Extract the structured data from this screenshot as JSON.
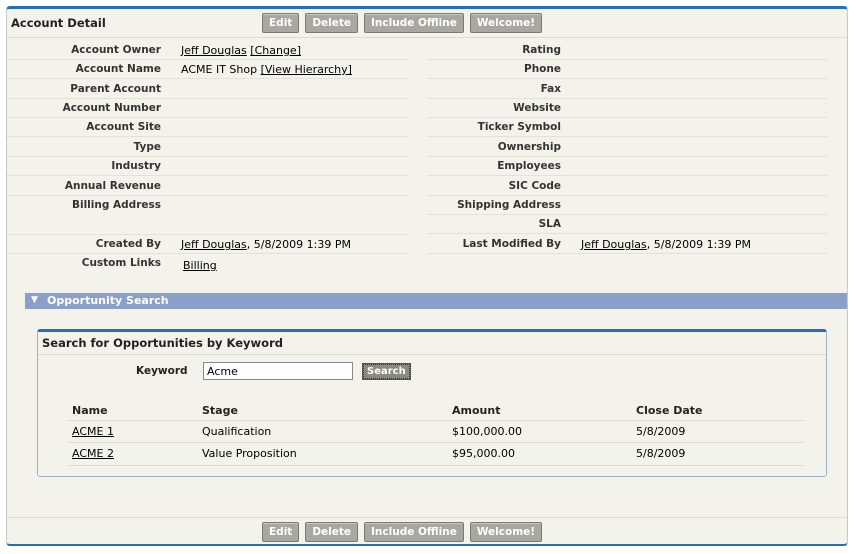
{
  "header": {
    "title": "Account Detail",
    "buttons": [
      "Edit",
      "Delete",
      "Include Offline",
      "Welcome!"
    ]
  },
  "left_fields": [
    {
      "label": "Account Owner",
      "value": "Jeff Douglas",
      "link": "[Change]"
    },
    {
      "label": "Account Name",
      "value": "ACME IT Shop",
      "link": "[View Hierarchy]"
    },
    {
      "label": "Parent Account",
      "value": ""
    },
    {
      "label": "Account Number",
      "value": ""
    },
    {
      "label": "Account Site",
      "value": ""
    },
    {
      "label": "Type",
      "value": ""
    },
    {
      "label": "Industry",
      "value": ""
    },
    {
      "label": "Annual Revenue",
      "value": ""
    },
    {
      "label": "Billing Address",
      "value": ""
    }
  ],
  "right_fields": [
    {
      "label": "Rating",
      "value": ""
    },
    {
      "label": "Phone",
      "value": ""
    },
    {
      "label": "Fax",
      "value": ""
    },
    {
      "label": "Website",
      "value": ""
    },
    {
      "label": "Ticker Symbol",
      "value": ""
    },
    {
      "label": "Ownership",
      "value": ""
    },
    {
      "label": "Employees",
      "value": ""
    },
    {
      "label": "SIC Code",
      "value": ""
    },
    {
      "label": "Shipping Address",
      "value": ""
    },
    {
      "label": "SLA",
      "value": ""
    }
  ],
  "created": {
    "label": "Created By",
    "user": "Jeff Douglas",
    "date": ", 5/8/2009 1:39 PM"
  },
  "modified": {
    "label": "Last Modified By",
    "user": "Jeff Douglas",
    "date": ", 5/8/2009 1:39 PM"
  },
  "custom_links": {
    "label": "Custom Links",
    "link": "Billing"
  },
  "section": {
    "title": "Opportunity Search"
  },
  "search": {
    "title": "Search for Opportunities by Keyword",
    "keyword_label": "Keyword",
    "keyword_value": "Acme",
    "button": "Search"
  },
  "table": {
    "headers": [
      "Name",
      "Stage",
      "Amount",
      "Close Date"
    ],
    "rows": [
      [
        "ACME 1",
        "Qualification",
        "$100,000.00",
        "5/8/2009"
      ],
      [
        "ACME 2",
        "Value Proposition",
        "$95,000.00",
        "5/8/2009"
      ]
    ]
  }
}
